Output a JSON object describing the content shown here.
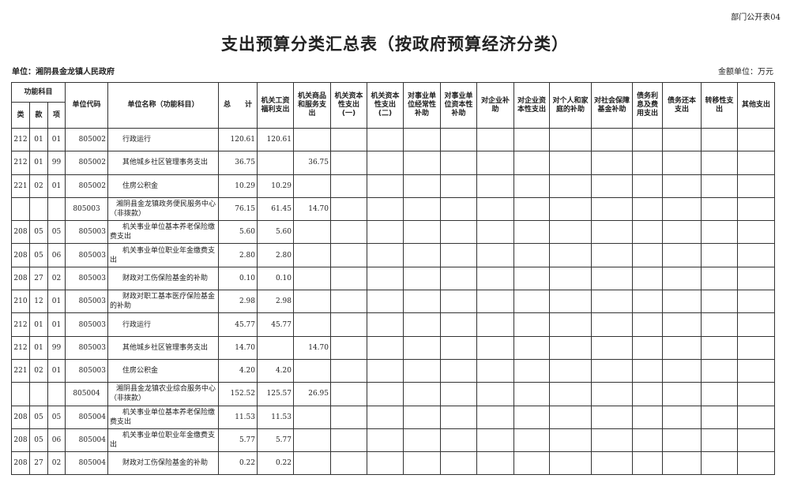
{
  "form_no": "部门公开表04",
  "title": "支出预算分类汇总表（按政府预算经济分类）",
  "unit_label": "单位：湘阴县金龙镇人民政府",
  "money_unit": "金额单位：万元",
  "headers": {
    "func": "功能科目",
    "lei": "类",
    "kuan": "款",
    "xiang": "项",
    "code": "单位代码",
    "name": "单位名称（功能科目）",
    "total": "总　　计",
    "cols": [
      "机关工资福利支出",
      "机关商品和服务支出",
      "机关资本性支出(一)",
      "机关资本性支出(二)",
      "对事业单位经常性补助",
      "对事业单位资本性补助",
      "对企业补助",
      "对企业资本性支出",
      "对个人和家庭的补助",
      "对社会保障基金补助",
      "债务利息及费用支出",
      "债务还本支出",
      "转移性支出",
      "其他支出"
    ]
  },
  "rows": [
    {
      "lei": "212",
      "kuan": "01",
      "xiang": "01",
      "code": "805002",
      "name": "行政运行",
      "total": "120.61",
      "wage": "120.61",
      "goods": ""
    },
    {
      "lei": "212",
      "kuan": "01",
      "xiang": "99",
      "code": "805002",
      "name": "其他城乡社区管理事务支出",
      "total": "36.75",
      "wage": "",
      "goods": "36.75"
    },
    {
      "lei": "221",
      "kuan": "02",
      "xiang": "01",
      "code": "805002",
      "name": "住房公积金",
      "total": "10.29",
      "wage": "10.29",
      "goods": ""
    },
    {
      "lei": "",
      "kuan": "",
      "xiang": "",
      "code": "805003",
      "name": "湘阴县金龙镇政务便民服务中心（非拨款）",
      "total": "76.15",
      "wage": "61.45",
      "goods": "14.70",
      "unit": true
    },
    {
      "lei": "208",
      "kuan": "05",
      "xiang": "05",
      "code": "805003",
      "name": "机关事业单位基本养老保险缴费支出",
      "total": "5.60",
      "wage": "5.60",
      "goods": ""
    },
    {
      "lei": "208",
      "kuan": "05",
      "xiang": "06",
      "code": "805003",
      "name": "机关事业单位职业年金缴费支出",
      "total": "2.80",
      "wage": "2.80",
      "goods": ""
    },
    {
      "lei": "208",
      "kuan": "27",
      "xiang": "02",
      "code": "805003",
      "name": "财政对工伤保险基金的补助",
      "total": "0.10",
      "wage": "0.10",
      "goods": ""
    },
    {
      "lei": "210",
      "kuan": "12",
      "xiang": "01",
      "code": "805003",
      "name": "财政对职工基本医疗保险基金的补助",
      "total": "2.98",
      "wage": "2.98",
      "goods": ""
    },
    {
      "lei": "212",
      "kuan": "01",
      "xiang": "01",
      "code": "805003",
      "name": "行政运行",
      "total": "45.77",
      "wage": "45.77",
      "goods": ""
    },
    {
      "lei": "212",
      "kuan": "01",
      "xiang": "99",
      "code": "805003",
      "name": "其他城乡社区管理事务支出",
      "total": "14.70",
      "wage": "",
      "goods": "14.70"
    },
    {
      "lei": "221",
      "kuan": "02",
      "xiang": "01",
      "code": "805003",
      "name": "住房公积金",
      "total": "4.20",
      "wage": "4.20",
      "goods": ""
    },
    {
      "lei": "",
      "kuan": "",
      "xiang": "",
      "code": "805004",
      "name": "湘阴县金龙镇农业综合服务中心（非拨款）",
      "total": "152.52",
      "wage": "125.57",
      "goods": "26.95",
      "unit": true
    },
    {
      "lei": "208",
      "kuan": "05",
      "xiang": "05",
      "code": "805004",
      "name": "机关事业单位基本养老保险缴费支出",
      "total": "11.53",
      "wage": "11.53",
      "goods": ""
    },
    {
      "lei": "208",
      "kuan": "05",
      "xiang": "06",
      "code": "805004",
      "name": "机关事业单位职业年金缴费支出",
      "total": "5.77",
      "wage": "5.77",
      "goods": ""
    },
    {
      "lei": "208",
      "kuan": "27",
      "xiang": "02",
      "code": "805004",
      "name": "财政对工伤保险基金的补助",
      "total": "0.22",
      "wage": "0.22",
      "goods": ""
    }
  ]
}
